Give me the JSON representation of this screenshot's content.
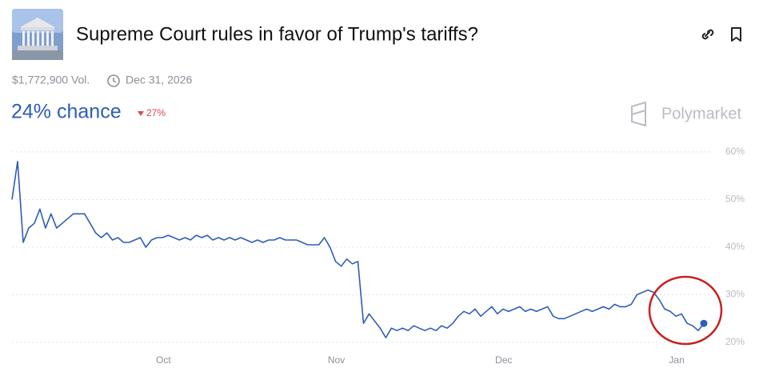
{
  "chart_data": {
    "type": "line",
    "title": "Supreme Court rules in favor of Trump's tariffs?",
    "volume": "$1,772,900 Vol.",
    "end_date": "Dec 31, 2026",
    "chance": "24% chance",
    "change": "27%",
    "brand": "Polymarket",
    "color": "#2e5cb8",
    "grid": true,
    "ylim": [
      19,
      63
    ],
    "yticks": [
      {
        "value": 20,
        "label": "20%"
      },
      {
        "value": 30,
        "label": "30%"
      },
      {
        "value": 40,
        "label": "40%"
      },
      {
        "value": 50,
        "label": "50%"
      },
      {
        "value": 60,
        "label": "60%"
      }
    ],
    "categories": [
      null,
      null,
      null,
      null,
      null,
      null,
      null,
      null,
      null,
      null,
      null,
      null,
      null,
      null,
      null,
      null,
      null,
      null,
      null,
      null,
      null,
      null,
      null,
      null,
      null,
      null,
      null,
      null,
      "Oct",
      null,
      null,
      null,
      null,
      null,
      null,
      null,
      null,
      null,
      null,
      null,
      null,
      null,
      null,
      null,
      null,
      null,
      null,
      null,
      null,
      null,
      null,
      null,
      null,
      null,
      null,
      null,
      null,
      null,
      null,
      "Nov",
      null,
      null,
      null,
      null,
      null,
      null,
      null,
      null,
      null,
      null,
      null,
      null,
      null,
      null,
      null,
      null,
      null,
      null,
      null,
      null,
      null,
      null,
      null,
      null,
      null,
      null,
      null,
      null,
      null,
      "Dec",
      null,
      null,
      null,
      null,
      null,
      null,
      null,
      null,
      null,
      null,
      null,
      null,
      null,
      null,
      null,
      null,
      null,
      null,
      null,
      null,
      null,
      null,
      null,
      null,
      null,
      null,
      null,
      null,
      null,
      null,
      "Jan",
      null,
      null,
      null,
      null
    ],
    "values": [
      50,
      58,
      41,
      44,
      45,
      48,
      44,
      47,
      44,
      45,
      46,
      47,
      47,
      47,
      45,
      43,
      42,
      43,
      41.5,
      42,
      41,
      41,
      41.5,
      42,
      40,
      41.5,
      42,
      42,
      42.5,
      42,
      41.5,
      42,
      41.5,
      42.5,
      42,
      42.5,
      41.5,
      42,
      41.5,
      42,
      41.5,
      42,
      41.5,
      41,
      41.5,
      41,
      41.5,
      41.5,
      42,
      41.5,
      41.5,
      41.5,
      41,
      40.5,
      40.5,
      40.5,
      42,
      40,
      37,
      36,
      37.5,
      36.5,
      37,
      24,
      26,
      24.5,
      23,
      21,
      23,
      22.5,
      23,
      22.5,
      23.5,
      23,
      22.5,
      23,
      22.5,
      23.5,
      23,
      24,
      25.5,
      26.5,
      26,
      27,
      25.5,
      26.5,
      27.5,
      26,
      27,
      26.5,
      27,
      27.5,
      26.5,
      27,
      26.5,
      27,
      27.5,
      25.5,
      25,
      25,
      25.5,
      26,
      26.5,
      27,
      26.5,
      27,
      27.5,
      27,
      28,
      27.5,
      27.5,
      28,
      30,
      30.5,
      31,
      30.5,
      29,
      27,
      26.5,
      25.5,
      26,
      24,
      23.5,
      22.5,
      24
    ]
  }
}
